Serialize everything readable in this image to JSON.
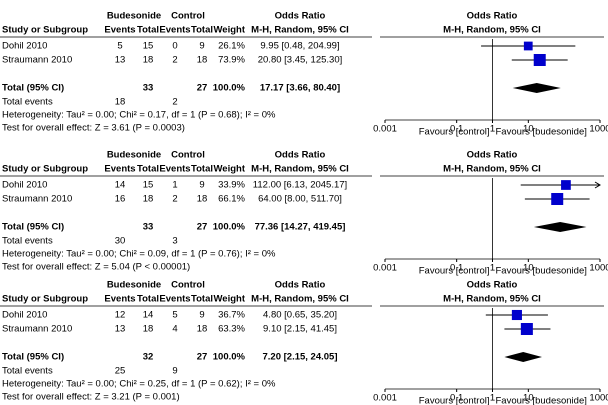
{
  "chart_data": [
    {
      "type": "forest",
      "group_headers": [
        "Budesonide",
        "Control"
      ],
      "columns": [
        "Study or Subgroup",
        "Events",
        "Total",
        "Events",
        "Total",
        "Weight",
        "Odds Ratio"
      ],
      "effect_header": "M-H, Random, 95% CI",
      "plot_title": "Odds Ratio",
      "plot_subtitle": "M-H, Random, 95% CI",
      "studies": [
        {
          "name": "Dohil 2010",
          "bud_events": 5,
          "bud_total": 15,
          "ctl_events": 0,
          "ctl_total": 9,
          "weight": 26.1,
          "weight_label": "26.1%",
          "or": 9.95,
          "lo": 0.48,
          "hi": 204.99,
          "ci_label": "9.95 [0.48, 204.99]"
        },
        {
          "name": "Straumann 2010",
          "bud_events": 13,
          "bud_total": 18,
          "ctl_events": 2,
          "ctl_total": 18,
          "weight": 73.9,
          "weight_label": "73.9%",
          "or": 20.8,
          "lo": 3.45,
          "hi": 125.3,
          "ci_label": "20.80 [3.45, 125.30]"
        }
      ],
      "total": {
        "name": "Total (95% CI)",
        "bud_total": 33,
        "ctl_total": 27,
        "weight_label": "100.0%",
        "or": 17.17,
        "lo": 3.66,
        "hi": 80.4,
        "ci_label": "17.17 [3.66, 80.40]"
      },
      "total_events": {
        "name": "Total events",
        "bud": 18,
        "ctl": 2
      },
      "heterogeneity": "Heterogeneity: Tau² = 0.00; Chi² = 0.17, df = 1 (P = 0.68); I² = 0%",
      "overall_effect": "Test for overall effect: Z = 3.61 (P = 0.0003)",
      "log_scale": true,
      "xlim": [
        0.001,
        1000
      ],
      "xticks": [
        0.001,
        0.1,
        1,
        10,
        1000
      ],
      "favours": [
        "Favours [control]",
        "Favours [budesonide]"
      ],
      "color": "#0000cc"
    },
    {
      "type": "forest",
      "group_headers": [
        "Budesonide",
        "Control"
      ],
      "columns": [
        "Study or Subgroup",
        "Events",
        "Total",
        "Events",
        "Total",
        "Weight",
        "Odds Ratio"
      ],
      "effect_header": "M-H, Random, 95% CI",
      "plot_title": "Odds Ratio",
      "plot_subtitle": "M-H, Random, 95% CI",
      "studies": [
        {
          "name": "Dohil 2010",
          "bud_events": 14,
          "bud_total": 15,
          "ctl_events": 1,
          "ctl_total": 9,
          "weight": 33.9,
          "weight_label": "33.9%",
          "or": 112.0,
          "lo": 6.13,
          "hi": 2045.17,
          "ci_label": "112.00 [6.13, 2045.17]"
        },
        {
          "name": "Straumann 2010",
          "bud_events": 16,
          "bud_total": 18,
          "ctl_events": 2,
          "ctl_total": 18,
          "weight": 66.1,
          "weight_label": "66.1%",
          "or": 64.0,
          "lo": 8.0,
          "hi": 511.7,
          "ci_label": "64.00 [8.00, 511.70]"
        }
      ],
      "total": {
        "name": "Total (95% CI)",
        "bud_total": 33,
        "ctl_total": 27,
        "weight_label": "100.0%",
        "or": 77.36,
        "lo": 14.27,
        "hi": 419.45,
        "ci_label": "77.36 [14.27, 419.45]"
      },
      "total_events": {
        "name": "Total events",
        "bud": 30,
        "ctl": 3
      },
      "heterogeneity": "Heterogeneity: Tau² = 0.00; Chi² = 0.09, df = 1 (P = 0.76); I² = 0%",
      "overall_effect": "Test for overall effect: Z = 5.04 (P < 0.00001)",
      "log_scale": true,
      "xlim": [
        0.001,
        1000
      ],
      "xticks": [
        0.001,
        0.1,
        1,
        10,
        1000
      ],
      "favours": [
        "Favours [control]",
        "Favours [budesonide]"
      ],
      "color": "#0000cc"
    },
    {
      "type": "forest",
      "group_headers": [
        "Budesonide",
        "Control"
      ],
      "columns": [
        "Study or Subgroup",
        "Events",
        "Total",
        "Events",
        "Total",
        "Weight",
        "Odds Ratio"
      ],
      "effect_header": "M-H, Random, 95% CI",
      "plot_title": "Odds Ratio",
      "plot_subtitle": "M-H, Random, 95% CI",
      "studies": [
        {
          "name": "Dohil 2010",
          "bud_events": 12,
          "bud_total": 14,
          "ctl_events": 5,
          "ctl_total": 9,
          "weight": 36.7,
          "weight_label": "36.7%",
          "or": 4.8,
          "lo": 0.65,
          "hi": 35.2,
          "ci_label": "4.80 [0.65, 35.20]"
        },
        {
          "name": "Straumann 2010",
          "bud_events": 13,
          "bud_total": 18,
          "ctl_events": 4,
          "ctl_total": 18,
          "weight": 63.3,
          "weight_label": "63.3%",
          "or": 9.1,
          "lo": 2.15,
          "hi": 41.45,
          "ci_label": "9.10 [2.15, 41.45]"
        }
      ],
      "total": {
        "name": "Total (95% CI)",
        "bud_total": 32,
        "ctl_total": 27,
        "weight_label": "100.0%",
        "or": 7.2,
        "lo": 2.15,
        "hi": 24.05,
        "ci_label": "7.20 [2.15, 24.05]"
      },
      "total_events": {
        "name": "Total events",
        "bud": 25,
        "ctl": 9
      },
      "heterogeneity": "Heterogeneity: Tau² = 0.00; Chi² = 0.25, df = 1 (P = 0.62); I² = 0%",
      "overall_effect": "Test for overall effect: Z = 3.21 (P = 0.001)",
      "log_scale": true,
      "xlim": [
        0.001,
        1000
      ],
      "xticks": [
        0.001,
        0.1,
        1,
        10,
        1000
      ],
      "favours": [
        "Favours [control]",
        "Favours [budesonide]"
      ],
      "color": "#0000cc"
    }
  ]
}
